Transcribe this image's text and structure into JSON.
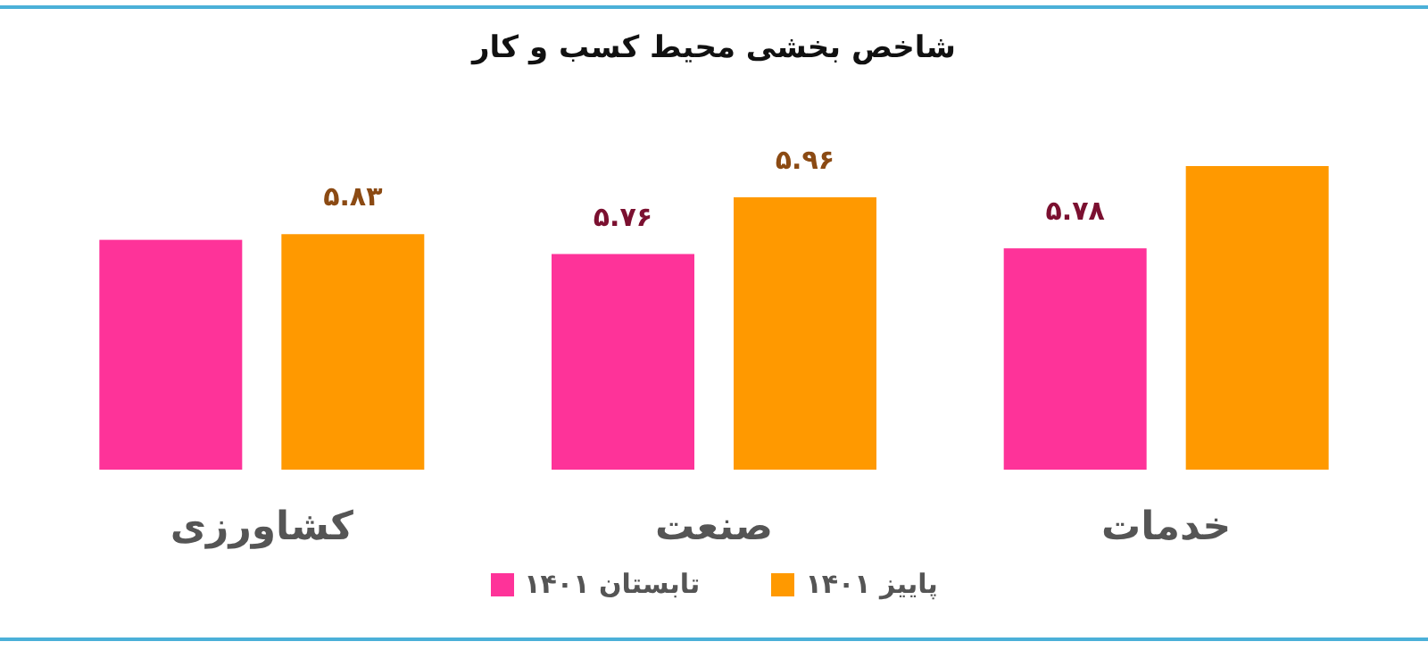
{
  "chart_data": {
    "type": "bar",
    "title": "شاخص بخشی محیط کسب و کار",
    "categories": [
      "کشاورزی",
      "صنعت",
      "خدمات"
    ],
    "series": [
      {
        "name": "تابستان ۱۴۰۱",
        "color": "#fe3399",
        "values": [
          5.81,
          5.76,
          5.78
        ],
        "value_labels": [
          null,
          "۵.۷۶",
          "۵.۷۸"
        ]
      },
      {
        "name": "پاییز ۱۴۰۱",
        "color": "#ff9900",
        "values": [
          5.83,
          5.96,
          6.07
        ],
        "value_labels": [
          "۵.۸۳",
          "۵.۹۶",
          null
        ]
      }
    ],
    "ylim": [
      5,
      6.07
    ],
    "legend": "bottom"
  }
}
